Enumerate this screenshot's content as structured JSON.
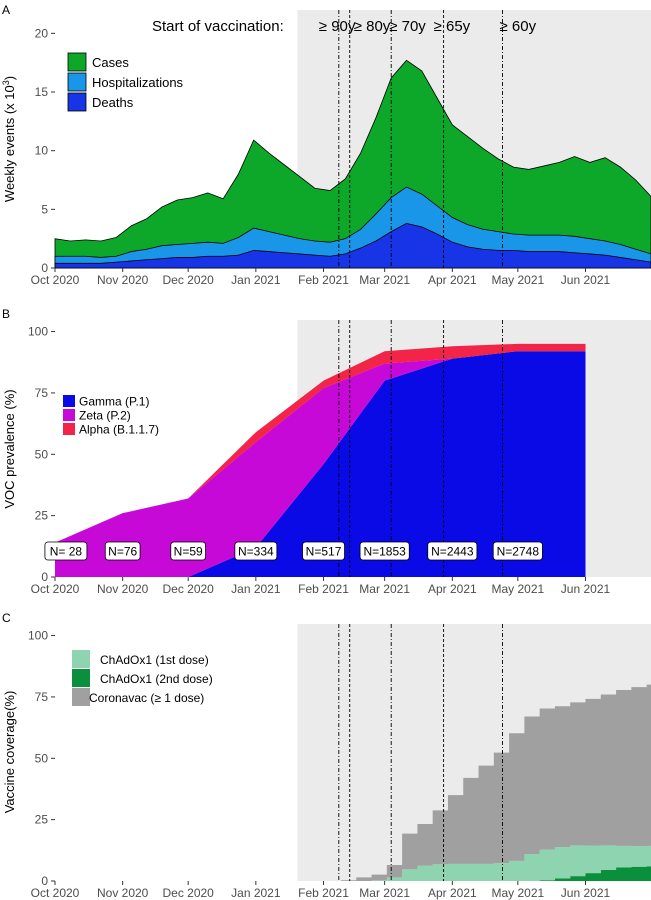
{
  "chart_data": [
    {
      "panel_label": "A",
      "type": "area",
      "annotation": "Start of vaccination:",
      "ylabel": "Weekly events (x 10",
      "ylabel_sup": "3",
      "ylabel_close": ")",
      "ylim": [
        0,
        21
      ],
      "yticks": [
        0,
        5,
        10,
        15,
        20
      ],
      "x_tick_labels": [
        "Oct 2020",
        "Nov 2020",
        "Dec 2020",
        "Jan 2021",
        "Feb 2021",
        "Mar 2021",
        "Apr 2021",
        "May 2021",
        "Jun 2021"
      ],
      "legend_position": "top-left",
      "shaded_period": [
        "2021-01-20",
        "2021-07-01"
      ],
      "vaccination_starts": [
        {
          "label": "≥ 90y",
          "date": "2021-02-08"
        },
        {
          "label": "≥ 80y",
          "date": "2021-02-13"
        },
        {
          "label": "≥ 70y",
          "date": "2021-03-04"
        },
        {
          "label": "≥ 65y",
          "date": "2021-03-28"
        },
        {
          "label": "≥ 60y",
          "date": "2021-04-24"
        }
      ],
      "x": [
        "2020-10-01",
        "2020-10-08",
        "2020-10-15",
        "2020-10-22",
        "2020-10-29",
        "2020-11-05",
        "2020-11-12",
        "2020-11-19",
        "2020-11-26",
        "2020-12-03",
        "2020-12-10",
        "2020-12-17",
        "2020-12-24",
        "2020-12-31",
        "2021-01-07",
        "2021-01-14",
        "2021-01-21",
        "2021-01-28",
        "2021-02-04",
        "2021-02-11",
        "2021-02-18",
        "2021-02-25",
        "2021-03-04",
        "2021-03-11",
        "2021-03-18",
        "2021-03-25",
        "2021-04-01",
        "2021-04-08",
        "2021-04-15",
        "2021-04-22",
        "2021-04-29",
        "2021-05-06",
        "2021-05-13",
        "2021-05-20",
        "2021-05-27",
        "2021-06-03",
        "2021-06-10",
        "2021-06-17",
        "2021-06-24",
        "2021-07-01"
      ],
      "series": [
        {
          "name": "Cases",
          "color": "#0da82a",
          "values": [
            2.5,
            2.3,
            2.4,
            2.3,
            2.6,
            3.6,
            4.2,
            5.2,
            5.8,
            6.0,
            6.4,
            5.9,
            8.0,
            10.9,
            9.8,
            8.8,
            7.8,
            6.8,
            6.6,
            7.6,
            9.8,
            12.8,
            16.2,
            17.7,
            16.8,
            14.5,
            12.2,
            11.2,
            10.2,
            9.3,
            8.6,
            8.4,
            8.7,
            9.0,
            9.5,
            9.0,
            9.4,
            8.6,
            7.5,
            6.1
          ]
        },
        {
          "name": "Hospitalizations",
          "color": "#1a96e8",
          "values": [
            1.0,
            1.0,
            1.0,
            0.9,
            1.0,
            1.4,
            1.6,
            1.9,
            2.0,
            2.1,
            2.2,
            2.1,
            2.6,
            3.4,
            3.1,
            2.8,
            2.5,
            2.3,
            2.2,
            2.5,
            3.3,
            4.6,
            6.0,
            6.9,
            6.3,
            5.3,
            4.3,
            3.7,
            3.3,
            3.1,
            2.9,
            2.8,
            2.8,
            2.8,
            2.7,
            2.5,
            2.3,
            2.0,
            1.6,
            1.2
          ]
        },
        {
          "name": "Deaths",
          "color": "#1735e6",
          "values": [
            0.4,
            0.4,
            0.4,
            0.4,
            0.5,
            0.6,
            0.7,
            0.8,
            0.9,
            0.9,
            1.0,
            1.0,
            1.1,
            1.5,
            1.4,
            1.3,
            1.2,
            1.1,
            1.0,
            1.2,
            1.7,
            2.3,
            3.1,
            3.8,
            3.5,
            2.9,
            2.2,
            1.8,
            1.6,
            1.5,
            1.5,
            1.4,
            1.4,
            1.4,
            1.3,
            1.2,
            1.1,
            0.9,
            0.7,
            0.5
          ]
        }
      ]
    },
    {
      "panel_label": "B",
      "type": "area",
      "ylabel": "VOC prevalence (%)",
      "ylim": [
        0,
        100
      ],
      "yticks": [
        0,
        25,
        50,
        75,
        100
      ],
      "x_tick_labels": [
        "Oct 2020",
        "Nov 2020",
        "Dec 2020",
        "Jan 2021",
        "Feb 2021",
        "Mar 2021",
        "Apr 2021",
        "May 2021",
        "Jun 2021"
      ],
      "legend_position": "left-middle",
      "shaded_period": [
        "2021-01-20",
        "2021-07-01"
      ],
      "x": [
        "2020-10-01",
        "2020-11-01",
        "2020-12-01",
        "2021-01-01",
        "2021-02-01",
        "2021-03-01",
        "2021-04-01",
        "2021-05-01",
        "2021-06-01"
      ],
      "series": [
        {
          "name": "Gamma (P.1)",
          "color": "#0a0ae6",
          "values": [
            0,
            0,
            0,
            12,
            46,
            80,
            89,
            92,
            92
          ]
        },
        {
          "name": "Zeta (P.2)",
          "color": "#c609d6",
          "values": [
            14,
            26,
            32,
            43,
            31,
            7,
            0,
            0,
            0
          ]
        },
        {
          "name": "Alpha (B.1.1.7)",
          "color": "#f22448",
          "values": [
            0,
            0,
            0,
            4,
            3,
            5,
            5,
            3,
            3
          ]
        }
      ],
      "sample_sizes": [
        {
          "label": "N= 28",
          "date": "2020-10-06"
        },
        {
          "label": "N=76",
          "date": "2020-11-01"
        },
        {
          "label": "N=59",
          "date": "2020-12-01"
        },
        {
          "label": "N=334",
          "date": "2021-01-01"
        },
        {
          "label": "N=517",
          "date": "2021-02-01"
        },
        {
          "label": "N=1853",
          "date": "2021-03-01"
        },
        {
          "label": "N=2443",
          "date": "2021-04-01"
        },
        {
          "label": "N=2748",
          "date": "2021-05-01"
        }
      ],
      "vaccination_starts": [
        "2021-02-08",
        "2021-02-13",
        "2021-03-04",
        "2021-03-28",
        "2021-04-24"
      ]
    },
    {
      "panel_label": "C",
      "type": "area",
      "ylabel": "Vaccine coverage(%)",
      "ylim": [
        0,
        100
      ],
      "yticks": [
        0,
        25,
        50,
        75,
        100
      ],
      "x_tick_labels": [
        "Oct 2020",
        "Nov 2020",
        "Dec 2020",
        "Jan 2021",
        "Feb 2021",
        "Mar 2021",
        "Apr 2021",
        "May 2021",
        "Jun 2021"
      ],
      "legend_position": "left-middle",
      "shaded_period": [
        "2021-01-20",
        "2021-07-01"
      ],
      "x": [
        "2021-01-19",
        "2021-01-26",
        "2021-02-02",
        "2021-02-09",
        "2021-02-16",
        "2021-02-23",
        "2021-03-02",
        "2021-03-09",
        "2021-03-16",
        "2021-03-23",
        "2021-03-30",
        "2021-04-06",
        "2021-04-13",
        "2021-04-20",
        "2021-04-27",
        "2021-05-04",
        "2021-05-11",
        "2021-05-18",
        "2021-05-25",
        "2021-06-01",
        "2021-06-08",
        "2021-06-15",
        "2021-06-22",
        "2021-06-29",
        "2021-07-01"
      ],
      "series": [
        {
          "name": "ChAdOx1 (1st dose)",
          "color": "#8fd4b0",
          "values": [
            0,
            0,
            0,
            0,
            0,
            0.3,
            1.5,
            4.8,
            6.2,
            6.8,
            7.0,
            7.0,
            7.0,
            7.3,
            8.2,
            11.0,
            12.5,
            12.8,
            12.5,
            11.2,
            10.0,
            8.8,
            8.4,
            8.3,
            8.2
          ]
        },
        {
          "name": "ChAdOx1 (2nd dose)",
          "color": "#0a8f3c",
          "values": [
            0,
            0,
            0,
            0,
            0,
            0,
            0,
            0,
            0,
            0,
            0,
            0,
            0,
            0,
            0,
            0,
            0.3,
            1.0,
            2.0,
            3.2,
            4.5,
            5.5,
            5.8,
            6.0,
            6.0
          ]
        },
        {
          "name": "Coronavac (≥ 1 dose)",
          "color": "#a0a0a0",
          "values": [
            0,
            0,
            0,
            0.3,
            1.5,
            2.3,
            5.0,
            14.5,
            17.0,
            22.0,
            28.0,
            35.0,
            40.0,
            45.0,
            52.0,
            56.0,
            57.5,
            57.4,
            58.3,
            59.8,
            61.5,
            63.5,
            64.8,
            65.7,
            66.1
          ]
        }
      ],
      "vaccination_starts": [
        "2021-02-08",
        "2021-02-13",
        "2021-03-04",
        "2021-03-28",
        "2021-04-24"
      ]
    }
  ]
}
